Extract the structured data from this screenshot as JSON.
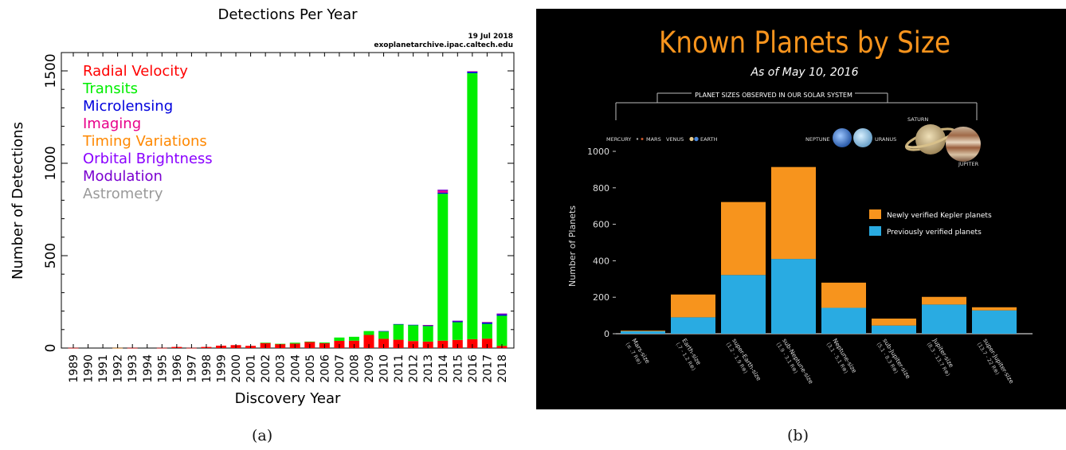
{
  "colors": {
    "radial_velocity": "#ff0000",
    "transits": "#00ee00",
    "microlensing": "#0000dd",
    "imaging": "#e8008a",
    "timing_variations": "#ff8800",
    "orbital_brightness": "#8a00ff",
    "modulation": "#7a00d0",
    "astrometry": "#9a9a9a",
    "kepler_orange": "#f7941d",
    "previous_blue": "#29abe2",
    "title_orange": "#f7941d"
  },
  "captions": {
    "a": "(a)",
    "b": "(b)"
  },
  "chart_data": [
    {
      "type": "bar",
      "stacked": true,
      "title": "Detections Per Year",
      "annotation_date": "19 Jul 2018",
      "annotation_source": "exoplanetarchive.ipac.caltech.edu",
      "xlabel": "Discovery Year",
      "ylabel": "Number of Detections",
      "ylim": [
        0,
        1500
      ],
      "yticks": [
        0,
        500,
        1000,
        1500
      ],
      "legend_position": "top-left",
      "categories": [
        "1989",
        "1990",
        "1991",
        "1992",
        "1993",
        "1994",
        "1995",
        "1996",
        "1997",
        "1998",
        "1999",
        "2000",
        "2001",
        "2002",
        "2003",
        "2004",
        "2005",
        "2006",
        "2007",
        "2008",
        "2009",
        "2010",
        "2011",
        "2012",
        "2013",
        "2014",
        "2015",
        "2016",
        "2017",
        "2018"
      ],
      "series": [
        {
          "name": "Radial Velocity",
          "color_key": "radial_velocity",
          "values": [
            1,
            0,
            0,
            0,
            1,
            0,
            1,
            6,
            1,
            6,
            13,
            16,
            12,
            28,
            22,
            24,
            34,
            26,
            39,
            40,
            71,
            50,
            45,
            38,
            35,
            40,
            44,
            48,
            51,
            12
          ]
        },
        {
          "name": "Transits",
          "color_key": "transits",
          "values": [
            0,
            0,
            0,
            0,
            0,
            0,
            0,
            0,
            0,
            0,
            0,
            0,
            0,
            1,
            1,
            5,
            1,
            4,
            18,
            21,
            21,
            40,
            83,
            86,
            84,
            795,
            96,
            1440,
            80,
            163
          ]
        },
        {
          "name": "Microlensing",
          "color_key": "microlensing",
          "values": [
            0,
            0,
            0,
            0,
            0,
            0,
            0,
            0,
            0,
            0,
            0,
            0,
            0,
            0,
            0,
            0,
            0,
            0,
            0,
            0,
            0,
            2,
            2,
            2,
            5,
            6,
            6,
            8,
            8,
            8
          ]
        },
        {
          "name": "Imaging",
          "color_key": "imaging",
          "values": [
            0,
            0,
            0,
            0,
            0,
            0,
            0,
            0,
            0,
            0,
            0,
            0,
            0,
            0,
            0,
            0,
            0,
            0,
            0,
            0,
            0,
            0,
            0,
            0,
            1,
            10,
            1,
            2,
            2,
            2
          ]
        },
        {
          "name": "Timing Variations",
          "color_key": "timing_variations",
          "values": [
            0,
            0,
            0,
            1,
            0,
            0,
            0,
            0,
            0,
            0,
            0,
            0,
            0,
            0,
            0,
            0,
            0,
            0,
            0,
            0,
            0,
            0,
            0,
            0,
            0,
            0,
            0,
            0,
            0,
            0
          ]
        },
        {
          "name": "Orbital Brightness",
          "color_key": "orbital_brightness",
          "values": [
            0,
            0,
            0,
            0,
            0,
            0,
            0,
            0,
            0,
            0,
            0,
            0,
            0,
            0,
            0,
            0,
            0,
            0,
            0,
            0,
            0,
            0,
            0,
            0,
            0,
            0,
            0,
            0,
            0,
            0
          ]
        },
        {
          "name": "Modulation",
          "color_key": "modulation",
          "values": [
            0,
            0,
            0,
            0,
            0,
            0,
            0,
            0,
            0,
            0,
            0,
            0,
            0,
            0,
            0,
            0,
            0,
            0,
            0,
            0,
            0,
            0,
            0,
            0,
            0,
            6,
            1,
            0,
            0,
            2
          ]
        },
        {
          "name": "Astrometry",
          "color_key": "astrometry",
          "values": [
            0,
            0,
            0,
            0,
            0,
            0,
            0,
            0,
            0,
            0,
            0,
            0,
            0,
            0,
            0,
            0,
            0,
            0,
            0,
            0,
            0,
            0,
            0,
            0,
            0,
            0,
            0,
            0,
            0,
            0
          ]
        }
      ]
    },
    {
      "type": "bar",
      "stacked": true,
      "title": "Known Planets by Size",
      "subtitle": "As of May 10, 2016",
      "ylabel": "Number of Planets",
      "ylim": [
        0,
        1000
      ],
      "yticks": [
        0,
        200,
        400,
        600,
        800,
        1000
      ],
      "legend_position": "right",
      "categories": [
        {
          "name": "Mars-size",
          "range": "(≤ .7 R⊕)"
        },
        {
          "name": "Earth-size",
          "range": "(.7 - 1.2 R⊕)"
        },
        {
          "name": "super-Earth-size",
          "range": "(1.2 - 1.9 R⊕)"
        },
        {
          "name": "sub-Neptune-size",
          "range": "(1.9 - 3.1 R⊕)"
        },
        {
          "name": "Neptune-size",
          "range": "(3.1 - 5.1 R⊕)"
        },
        {
          "name": "sub-Jupiter-size",
          "range": "(5.1 - 8.3 R⊕)"
        },
        {
          "name": "Jupiter-size",
          "range": "(8.3 - 13.7 R⊕)"
        },
        {
          "name": "super-Jupiter-size",
          "range": "(13.7 - 22 R⊕)"
        }
      ],
      "series": [
        {
          "name": "Previously verified planets",
          "color_key": "previous_blue",
          "values": [
            15,
            90,
            322,
            410,
            142,
            45,
            160,
            128
          ]
        },
        {
          "name": "Newly verified Kepler planets",
          "color_key": "kepler_orange",
          "values": [
            2,
            125,
            400,
            504,
            138,
            38,
            42,
            17
          ]
        }
      ],
      "solar_system_bracket_label": "PLANET SIZES OBSERVED IN OUR SOLAR SYSTEM",
      "solar_system_labels": {
        "mercury": "MERCURY",
        "mars": "MARS",
        "venus": "VENUS",
        "earth": "EARTH",
        "neptune": "NEPTUNE",
        "uranus": "URANUS",
        "saturn": "SATURN",
        "jupiter": "JUPITER"
      }
    }
  ]
}
